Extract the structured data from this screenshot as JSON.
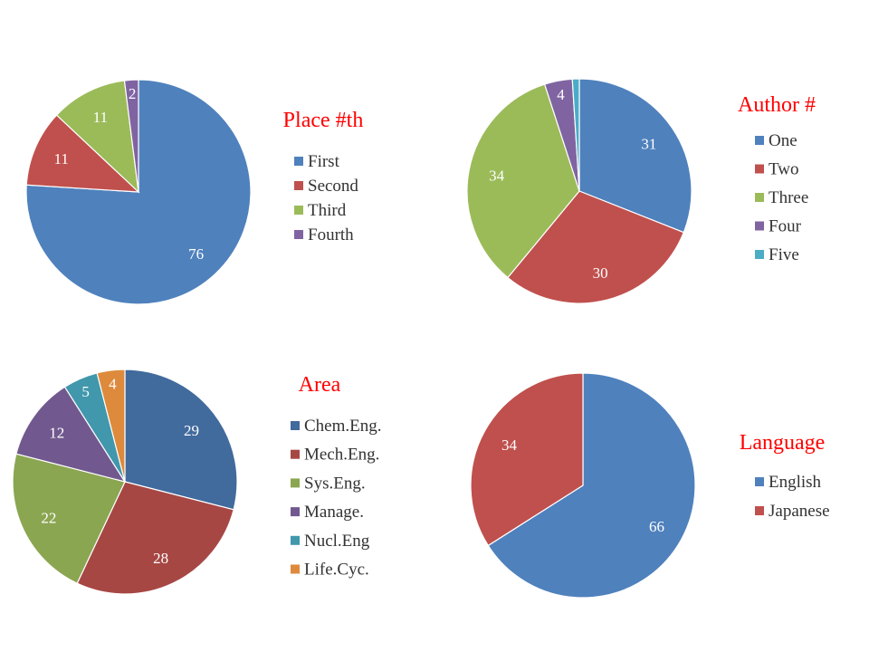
{
  "chart_data": [
    {
      "type": "pie",
      "title": "Place #th",
      "categories": [
        "First",
        "Second",
        "Third",
        "Fourth"
      ],
      "values": [
        76,
        11,
        11,
        2
      ],
      "colors": [
        "#4F81BD",
        "#C0504D",
        "#9BBB59",
        "#8064A2"
      ],
      "data_labels": true,
      "legend_position": "right"
    },
    {
      "type": "pie",
      "title": "Author #",
      "categories": [
        "One",
        "Two",
        "Three",
        "Four",
        "Five"
      ],
      "values": [
        31,
        30,
        34,
        4,
        1
      ],
      "value_labels": [
        "31",
        "30",
        "34",
        "4",
        ""
      ],
      "colors": [
        "#4F81BD",
        "#C0504D",
        "#9BBB59",
        "#8064A2",
        "#4BACC6"
      ],
      "data_labels": true,
      "legend_position": "right"
    },
    {
      "type": "pie",
      "title": "Area",
      "categories": [
        "Chem.Eng.",
        "Mech.Eng.",
        "Sys.Eng.",
        "Manage.",
        "Nucl.Eng",
        "Life.Cyc."
      ],
      "values": [
        29,
        28,
        22,
        12,
        5,
        4
      ],
      "colors": [
        "#416A9D",
        "#A64744",
        "#8AA651",
        "#71598F",
        "#4197AC",
        "#DE8A3C"
      ],
      "data_labels": true,
      "legend_position": "right"
    },
    {
      "type": "pie",
      "title": "Language",
      "categories": [
        "English",
        "Japanese"
      ],
      "values": [
        66,
        34
      ],
      "colors": [
        "#4F81BD",
        "#C0504D"
      ],
      "data_labels": true,
      "legend_position": "right"
    }
  ]
}
